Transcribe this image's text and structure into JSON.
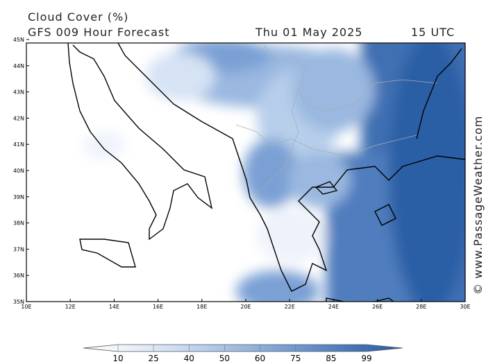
{
  "header": {
    "title": "Cloud Cover (%)",
    "model": "GFS 009 Hour Forecast",
    "date": "Thu 01 May 2025",
    "time": "15 UTC"
  },
  "map": {
    "lat_labels": [
      "45N",
      "44N",
      "43N",
      "42N",
      "41N",
      "40N",
      "39N",
      "38N",
      "37N",
      "36N",
      "35N"
    ],
    "lon_labels": [
      "10E",
      "12E",
      "14E",
      "16E",
      "18E",
      "20E",
      "22E",
      "24E",
      "26E",
      "28E",
      "30E"
    ]
  },
  "colorbar": {
    "labels": [
      10,
      25,
      40,
      50,
      60,
      75,
      85,
      99
    ],
    "colors": [
      "#ffffff",
      "#eef3fb",
      "#d6e3f4",
      "#b8cfeb",
      "#9ab8e0",
      "#7aa0d4",
      "#5b88c6",
      "#3f6fb2",
      "#2c5ea5"
    ]
  },
  "watermark": "© www.PassageWeather.com"
}
